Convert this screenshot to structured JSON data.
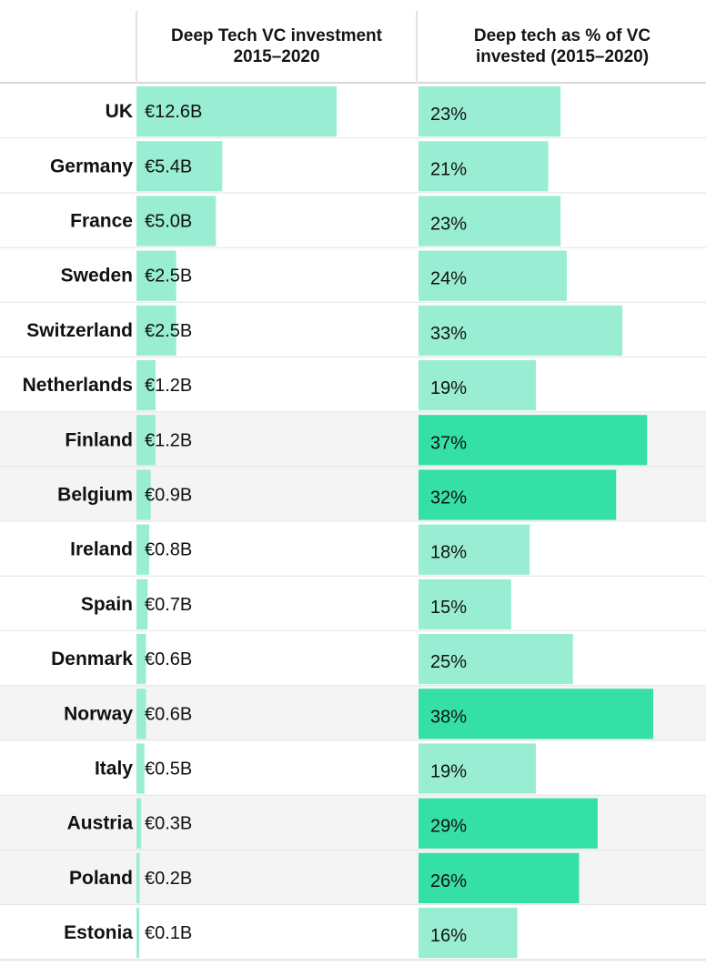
{
  "headers": {
    "investment": [
      "Deep Tech VC investment",
      "2015–2020"
    ],
    "share": [
      "Deep tech as % of VC",
      "invested (2015–2020)"
    ]
  },
  "colors": {
    "bar_light": "#98edd3",
    "bar_highlight": "#35e0a7",
    "row_shaded": "#f4f4f4",
    "row_plain": "#ffffff",
    "grid": "#e4e4e4"
  },
  "chart_data": {
    "type": "table",
    "columns": [
      "Deep Tech VC investment 2015–2020",
      "Deep tech as % of VC invested (2015–2020)"
    ],
    "rows": [
      {
        "country": "UK",
        "investment_eur_b": 12.6,
        "investment_label": "€12.6B",
        "share_pct": 23,
        "share_label": "23%",
        "highlight": false
      },
      {
        "country": "Germany",
        "investment_eur_b": 5.4,
        "investment_label": "€5.4B",
        "share_pct": 21,
        "share_label": "21%",
        "highlight": false
      },
      {
        "country": "France",
        "investment_eur_b": 5.0,
        "investment_label": "€5.0B",
        "share_pct": 23,
        "share_label": "23%",
        "highlight": false
      },
      {
        "country": "Sweden",
        "investment_eur_b": 2.5,
        "investment_label": "€2.5B",
        "share_pct": 24,
        "share_label": "24%",
        "highlight": false
      },
      {
        "country": "Switzerland",
        "investment_eur_b": 2.5,
        "investment_label": "€2.5B",
        "share_pct": 33,
        "share_label": "33%",
        "highlight": false
      },
      {
        "country": "Netherlands",
        "investment_eur_b": 1.2,
        "investment_label": "€1.2B",
        "share_pct": 19,
        "share_label": "19%",
        "highlight": false
      },
      {
        "country": "Finland",
        "investment_eur_b": 1.2,
        "investment_label": "€1.2B",
        "share_pct": 37,
        "share_label": "37%",
        "highlight": true
      },
      {
        "country": "Belgium",
        "investment_eur_b": 0.9,
        "investment_label": "€0.9B",
        "share_pct": 32,
        "share_label": "32%",
        "highlight": true
      },
      {
        "country": "Ireland",
        "investment_eur_b": 0.8,
        "investment_label": "€0.8B",
        "share_pct": 18,
        "share_label": "18%",
        "highlight": false
      },
      {
        "country": "Spain",
        "investment_eur_b": 0.7,
        "investment_label": "€0.7B",
        "share_pct": 15,
        "share_label": "15%",
        "highlight": false
      },
      {
        "country": "Denmark",
        "investment_eur_b": 0.6,
        "investment_label": "€0.6B",
        "share_pct": 25,
        "share_label": "25%",
        "highlight": false
      },
      {
        "country": "Norway",
        "investment_eur_b": 0.6,
        "investment_label": "€0.6B",
        "share_pct": 38,
        "share_label": "38%",
        "highlight": true
      },
      {
        "country": "Italy",
        "investment_eur_b": 0.5,
        "investment_label": "€0.5B",
        "share_pct": 19,
        "share_label": "19%",
        "highlight": false
      },
      {
        "country": "Austria",
        "investment_eur_b": 0.3,
        "investment_label": "€0.3B",
        "share_pct": 29,
        "share_label": "29%",
        "highlight": true
      },
      {
        "country": "Poland",
        "investment_eur_b": 0.2,
        "investment_label": "€0.2B",
        "share_pct": 26,
        "share_label": "26%",
        "highlight": true
      },
      {
        "country": "Estonia",
        "investment_eur_b": 0.1,
        "investment_label": "€0.1B",
        "share_pct": 16,
        "share_label": "16%",
        "highlight": false
      }
    ]
  }
}
